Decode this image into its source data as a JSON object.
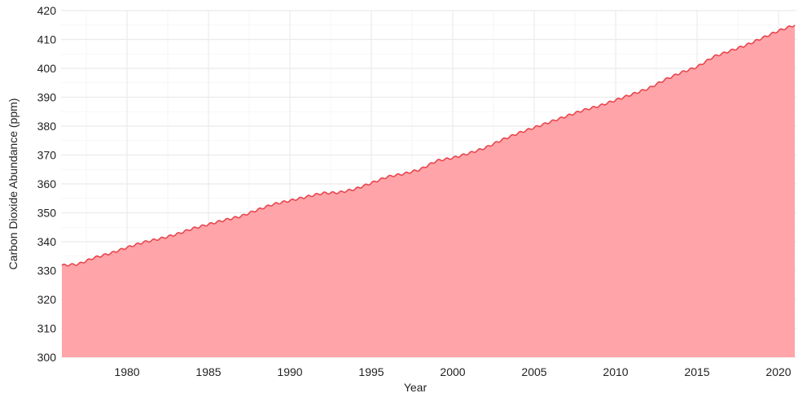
{
  "chart_data": {
    "type": "area",
    "title": "",
    "xlabel": "Year",
    "ylabel": "Carbon Dioxide Abundance (ppm)",
    "xlim": [
      1975.95,
      2021.1
    ],
    "ylim": [
      300,
      420
    ],
    "xticks": [
      1980,
      1985,
      1990,
      1995,
      2000,
      2005,
      2010,
      2015,
      2020
    ],
    "yticks": [
      300,
      310,
      320,
      330,
      340,
      350,
      360,
      370,
      380,
      390,
      400,
      410,
      420
    ],
    "grid": true,
    "legend": "none",
    "fill_color": "#ffa4a8",
    "line_color": "#e8474f",
    "series": [
      {
        "x": [
          1976.0,
          1977.0,
          1978.0,
          1979.0,
          1980.0,
          1981.0,
          1982.0,
          1983.0,
          1984.0,
          1985.0,
          1986.0,
          1987.0,
          1988.0,
          1989.0,
          1990.0,
          1991.0,
          1992.0,
          1993.0,
          1994.0,
          1995.0,
          1996.0,
          1997.0,
          1998.0,
          1999.0,
          2000.0,
          2001.0,
          2002.0,
          2003.0,
          2004.0,
          2005.0,
          2006.0,
          2007.0,
          2008.0,
          2009.0,
          2010.0,
          2011.0,
          2012.0,
          2013.0,
          2014.0,
          2015.0,
          2016.0,
          2017.0,
          2018.0,
          2019.0,
          2020.0,
          2021.0
        ],
        "values": [
          331.8,
          332.2,
          334.5,
          336.0,
          338.0,
          339.8,
          341.0,
          342.5,
          344.5,
          346.0,
          347.5,
          348.8,
          351.0,
          353.0,
          354.2,
          355.5,
          356.8,
          357.0,
          358.2,
          360.3,
          362.5,
          363.5,
          365.0,
          368.0,
          369.0,
          370.6,
          372.5,
          375.2,
          377.5,
          379.5,
          381.5,
          383.5,
          385.5,
          387.0,
          389.0,
          391.0,
          393.0,
          396.0,
          398.5,
          400.5,
          404.0,
          406.0,
          408.0,
          410.5,
          413.0,
          415.0
        ]
      }
    ]
  }
}
